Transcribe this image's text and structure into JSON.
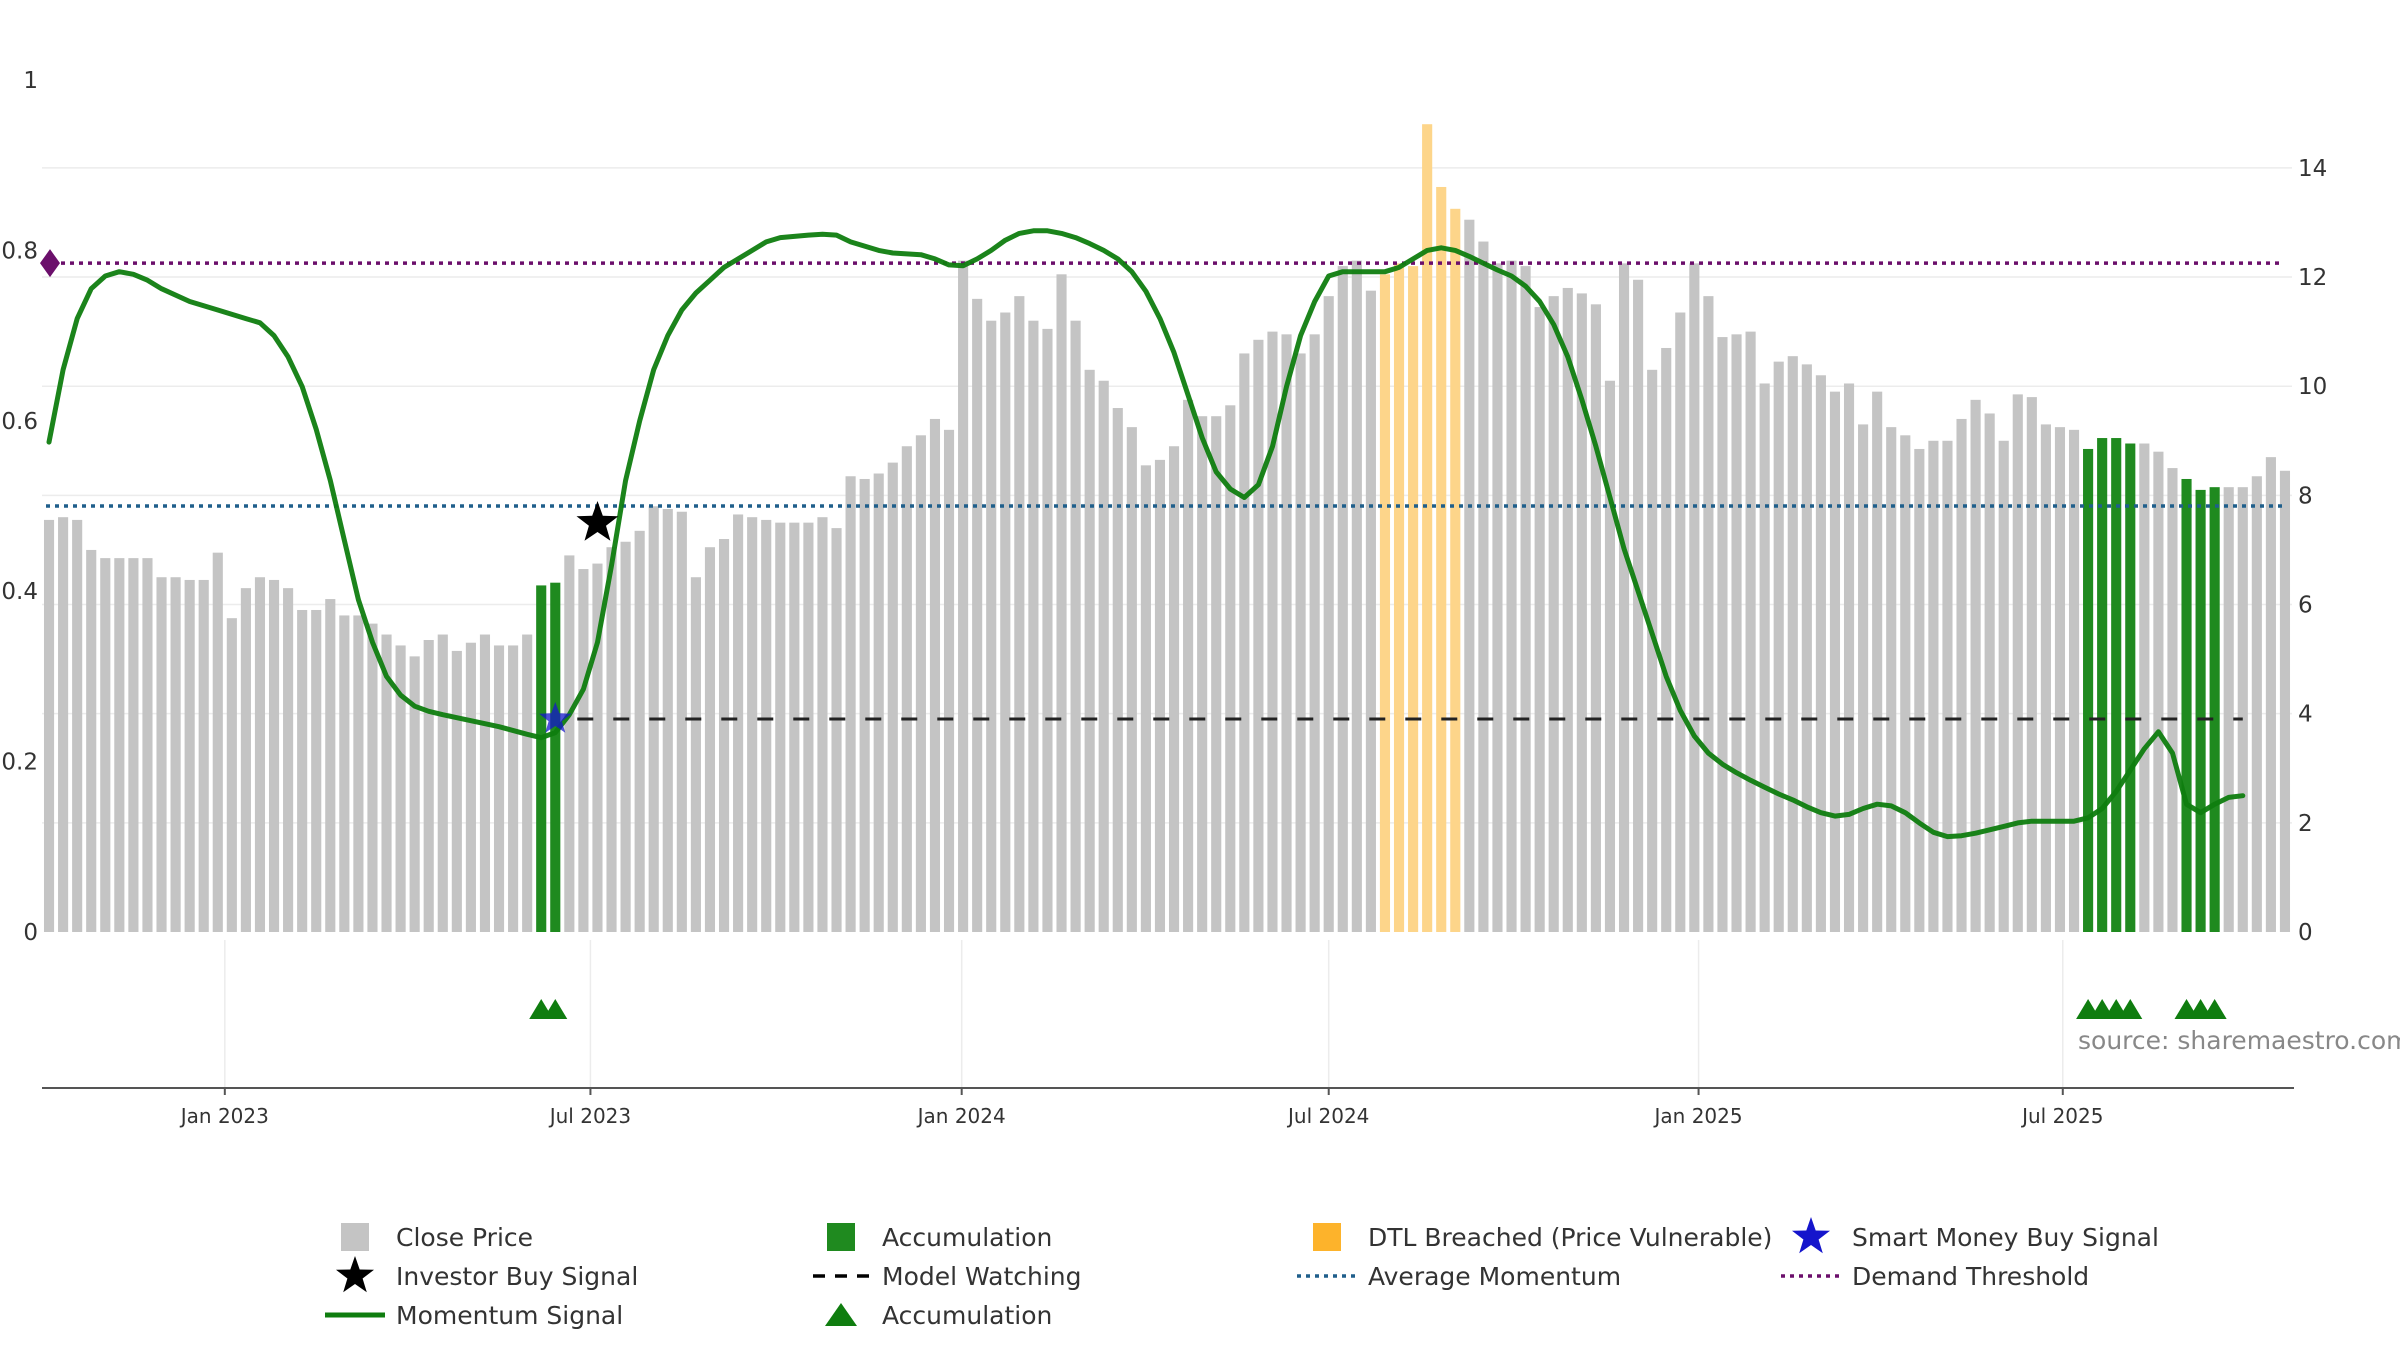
{
  "source_text": "source: sharemaestro.com",
  "colors": {
    "close_price": "#c4c4c4",
    "accumulation": "#1f8a1f",
    "dtl": "#fdd58a",
    "momentum": "#0f7d0f",
    "average": "#1f5f8b",
    "demand": "#6b0f6b",
    "model": "#222222",
    "smart_money": "#1515cc"
  },
  "chart_data": {
    "type": "bar",
    "title": "",
    "left_axis": {
      "ticks": [
        0,
        0.2,
        0.4,
        0.6,
        0.8,
        1
      ],
      "tick_labels": [
        "0",
        "0.2",
        "0.4",
        "0.6",
        "0.8",
        "1"
      ],
      "range": [
        0,
        1
      ]
    },
    "right_axis": {
      "ticks": [
        0,
        2,
        4,
        6,
        8,
        10,
        12,
        14
      ],
      "tick_labels": [
        "0",
        "2",
        "4",
        "6",
        "8",
        "10",
        "12",
        "14"
      ],
      "range": [
        0,
        15.5
      ]
    },
    "x_axis": {
      "start": "2022-10-09",
      "end": "2025-09-21",
      "ticks": [
        {
          "label": "Jan 2023",
          "week": 12.5
        },
        {
          "label": "Jul 2023",
          "week": 38.5
        },
        {
          "label": "Jan 2024",
          "week": 64.9
        },
        {
          "label": "Jul 2024",
          "week": 91
        },
        {
          "label": "Jan 2025",
          "week": 117.3
        },
        {
          "label": "Jul 2025",
          "week": 143.2
        }
      ]
    },
    "close_price_weekly": [
      7.55,
      7.6,
      7.55,
      7,
      6.85,
      6.85,
      6.85,
      6.85,
      6.5,
      6.5,
      6.45,
      6.45,
      6.95,
      5.75,
      6.3,
      6.5,
      6.45,
      6.3,
      5.9,
      5.9,
      6.1,
      5.8,
      5.8,
      5.65,
      5.45,
      5.25,
      5.05,
      5.35,
      5.45,
      5.15,
      5.3,
      5.45,
      5.25,
      5.25,
      5.45,
      6.35,
      6.4,
      6.9,
      6.65,
      6.75,
      7.05,
      7.15,
      7.35,
      7.8,
      7.75,
      7.7,
      6.5,
      7.05,
      7.2,
      7.65,
      7.6,
      7.55,
      7.5,
      7.5,
      7.5,
      7.6,
      7.4,
      8.35,
      8.3,
      8.4,
      8.6,
      8.9,
      9.1,
      9.4,
      9.2,
      12.3,
      11.6,
      11.2,
      11.35,
      11.65,
      11.2,
      11.05,
      12.05,
      11.2,
      10.3,
      10.1,
      9.6,
      9.25,
      8.55,
      8.65,
      8.9,
      9.75,
      9.45,
      9.45,
      9.65,
      10.6,
      10.85,
      11,
      10.95,
      10.6,
      10.95,
      11.65,
      12.2,
      12.3,
      11.75,
      12.05,
      12.25,
      12.2,
      14.8,
      13.65,
      13.25,
      13.05,
      12.65,
      12.25,
      12.3,
      12.2,
      11.45,
      11.65,
      11.8,
      11.7,
      11.5,
      10.1,
      12.25,
      11.95,
      10.3,
      10.7,
      11.35,
      12.25,
      11.65,
      10.9,
      10.95,
      11,
      10.05,
      10.45,
      10.55,
      10.4,
      10.2,
      9.9,
      10.05,
      9.3,
      9.9,
      9.25,
      9.1,
      8.85,
      9,
      9,
      9.4,
      9.75,
      9.5,
      9,
      9.85,
      9.8,
      9.3,
      9.25,
      9.2,
      8.85,
      9.05,
      9.05,
      8.95,
      8.95,
      8.8,
      8.5,
      8.3,
      8.1,
      8.15,
      8.15,
      8.15,
      8.35,
      8.7,
      8.45
    ],
    "close_price_styles": {
      "accumulation_weeks": [
        35,
        36,
        145,
        146,
        147,
        148,
        152,
        153,
        154
      ],
      "dtl_weeks": [
        95,
        96,
        97,
        98,
        99,
        100
      ]
    },
    "momentum_signal": [
      [
        0,
        0.575
      ],
      [
        1,
        0.66
      ],
      [
        2,
        0.72
      ],
      [
        3,
        0.755
      ],
      [
        4,
        0.77
      ],
      [
        5,
        0.775
      ],
      [
        6,
        0.772
      ],
      [
        7,
        0.765
      ],
      [
        8,
        0.755
      ],
      [
        10,
        0.74
      ],
      [
        12,
        0.73
      ],
      [
        14,
        0.72
      ],
      [
        15,
        0.715
      ],
      [
        16,
        0.7
      ],
      [
        17,
        0.675
      ],
      [
        18,
        0.64
      ],
      [
        19,
        0.59
      ],
      [
        20,
        0.53
      ],
      [
        21,
        0.46
      ],
      [
        22,
        0.39
      ],
      [
        23,
        0.34
      ],
      [
        24,
        0.3
      ],
      [
        25,
        0.278
      ],
      [
        26,
        0.265
      ],
      [
        27,
        0.259
      ],
      [
        28,
        0.255
      ],
      [
        30,
        0.248
      ],
      [
        32,
        0.241
      ],
      [
        34,
        0.232
      ],
      [
        35,
        0.228
      ],
      [
        36,
        0.234
      ],
      [
        37,
        0.255
      ],
      [
        38,
        0.285
      ],
      [
        39,
        0.34
      ],
      [
        40,
        0.43
      ],
      [
        41,
        0.53
      ],
      [
        42,
        0.6
      ],
      [
        43,
        0.66
      ],
      [
        44,
        0.7
      ],
      [
        45,
        0.73
      ],
      [
        46,
        0.75
      ],
      [
        47,
        0.765
      ],
      [
        48,
        0.78
      ],
      [
        49,
        0.79
      ],
      [
        50,
        0.8
      ],
      [
        51,
        0.81
      ],
      [
        52,
        0.815
      ],
      [
        54,
        0.818
      ],
      [
        55,
        0.819
      ],
      [
        56,
        0.818
      ],
      [
        57,
        0.81
      ],
      [
        59,
        0.8
      ],
      [
        60,
        0.797
      ],
      [
        62,
        0.795
      ],
      [
        63,
        0.79
      ],
      [
        64,
        0.783
      ],
      [
        65,
        0.782
      ],
      [
        66,
        0.79
      ],
      [
        67,
        0.8
      ],
      [
        68,
        0.812
      ],
      [
        69,
        0.82
      ],
      [
        70,
        0.823
      ],
      [
        71,
        0.823
      ],
      [
        72,
        0.82
      ],
      [
        73,
        0.815
      ],
      [
        74,
        0.808
      ],
      [
        75,
        0.8
      ],
      [
        76,
        0.79
      ],
      [
        77,
        0.775
      ],
      [
        78,
        0.752
      ],
      [
        79,
        0.72
      ],
      [
        80,
        0.68
      ],
      [
        81,
        0.63
      ],
      [
        82,
        0.58
      ],
      [
        83,
        0.54
      ],
      [
        84,
        0.52
      ],
      [
        85,
        0.51
      ],
      [
        86,
        0.525
      ],
      [
        87,
        0.57
      ],
      [
        88,
        0.64
      ],
      [
        89,
        0.7
      ],
      [
        90,
        0.74
      ],
      [
        91,
        0.77
      ],
      [
        92,
        0.775
      ],
      [
        93,
        0.775
      ],
      [
        94,
        0.775
      ],
      [
        95,
        0.775
      ],
      [
        96,
        0.78
      ],
      [
        97,
        0.79
      ],
      [
        98,
        0.8
      ],
      [
        99,
        0.803
      ],
      [
        100,
        0.8
      ],
      [
        101,
        0.793
      ],
      [
        102,
        0.785
      ],
      [
        103,
        0.777
      ],
      [
        104,
        0.77
      ],
      [
        105,
        0.758
      ],
      [
        106,
        0.74
      ],
      [
        107,
        0.713
      ],
      [
        108,
        0.675
      ],
      [
        109,
        0.625
      ],
      [
        110,
        0.57
      ],
      [
        111,
        0.51
      ],
      [
        112,
        0.45
      ],
      [
        113,
        0.4
      ],
      [
        114,
        0.35
      ],
      [
        115,
        0.3
      ],
      [
        116,
        0.26
      ],
      [
        117,
        0.23
      ],
      [
        118,
        0.21
      ],
      [
        119,
        0.197
      ],
      [
        120,
        0.187
      ],
      [
        121,
        0.178
      ],
      [
        122,
        0.17
      ],
      [
        123,
        0.162
      ],
      [
        124,
        0.155
      ],
      [
        125,
        0.147
      ],
      [
        126,
        0.14
      ],
      [
        127,
        0.136
      ],
      [
        128,
        0.138
      ],
      [
        129,
        0.145
      ],
      [
        130,
        0.15
      ],
      [
        131,
        0.148
      ],
      [
        132,
        0.14
      ],
      [
        133,
        0.128
      ],
      [
        134,
        0.117
      ],
      [
        135,
        0.112
      ],
      [
        136,
        0.113
      ],
      [
        137,
        0.116
      ],
      [
        138,
        0.12
      ],
      [
        139,
        0.124
      ],
      [
        140,
        0.128
      ],
      [
        141,
        0.13
      ],
      [
        142,
        0.13
      ],
      [
        143,
        0.13
      ],
      [
        144,
        0.13
      ],
      [
        145,
        0.134
      ],
      [
        146,
        0.145
      ],
      [
        147,
        0.165
      ],
      [
        148,
        0.19
      ],
      [
        149,
        0.215
      ],
      [
        150,
        0.235
      ],
      [
        151,
        0.21
      ],
      [
        152,
        0.15
      ],
      [
        153,
        0.14
      ],
      [
        154,
        0.15
      ],
      [
        155,
        0.158
      ],
      [
        156,
        0.16
      ]
    ],
    "reference_lines": {
      "average_momentum": 0.5,
      "demand_threshold": 0.785,
      "model_watching": 0.25
    },
    "model_watching_range": [
      36,
      156
    ],
    "investor_buy_signal": [
      [
        39,
        0.48
      ]
    ],
    "smart_money_buy_signal": [
      [
        36,
        0.25
      ]
    ],
    "demand_marker": [
      [
        0,
        0.785
      ]
    ],
    "accumulation_markers_weeks": [
      35,
      36,
      145,
      146,
      147,
      148,
      152,
      153,
      154
    ],
    "legend": [
      {
        "label": "Close Price",
        "symbol": "square",
        "color": "#c4c4c4"
      },
      {
        "label": "Accumulation",
        "symbol": "square",
        "color": "#1f8a1f"
      },
      {
        "label": "DTL Breached (Price Vulnerable)",
        "symbol": "square",
        "color": "#fdb32b"
      },
      {
        "label": "Smart Money Buy Signal",
        "symbol": "star",
        "color": "#1515cc"
      },
      {
        "label": "Investor Buy Signal",
        "symbol": "star",
        "color": "#000000"
      },
      {
        "label": "Model Watching",
        "symbol": "dash",
        "color": "#000000"
      },
      {
        "label": "Average Momentum",
        "symbol": "dot",
        "color": "#1f5f8b"
      },
      {
        "label": "Demand Threshold",
        "symbol": "dot",
        "color": "#6b0f6b"
      },
      {
        "label": "Momentum Signal",
        "symbol": "line",
        "color": "#0f7d0f"
      },
      {
        "label": "Accumulation",
        "symbol": "triangle",
        "color": "#0f7d0f"
      }
    ]
  }
}
